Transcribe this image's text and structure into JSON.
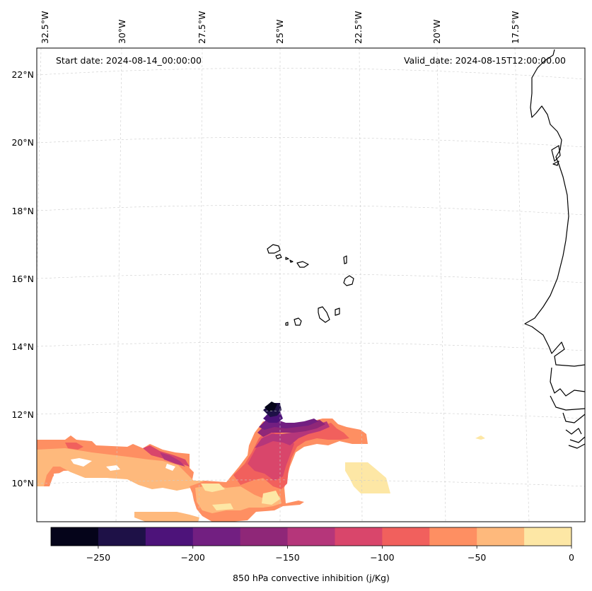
{
  "map": {
    "start_label": "Start date: 2024-08-14_00:00:00",
    "valid_label": "Valid_date: 2024-08-15T12:00:00.00",
    "lon_labels": [
      "32.5°W",
      "30°W",
      "27.5°W",
      "25°W",
      "22.5°W",
      "20°W",
      "17.5°W"
    ],
    "lat_labels": [
      "22°N",
      "20°N",
      "18°N",
      "16°N",
      "14°N",
      "12°N",
      "10°N"
    ]
  },
  "colorbar": {
    "label": "850 hPa convective inhibition (j/Kg)",
    "ticks": [
      "−250",
      "−200",
      "−150",
      "−100",
      "−50",
      "0"
    ],
    "levels": [
      -275,
      -250,
      -225,
      -200,
      -175,
      -150,
      -125,
      -100,
      -75,
      -50,
      -25,
      0
    ],
    "colors": [
      "#05041a",
      "#1e1147",
      "#4d137a",
      "#721f81",
      "#8f2778",
      "#b5367a",
      "#d9466b",
      "#f1605d",
      "#fe8f62",
      "#feb97c",
      "#fde7a5"
    ]
  },
  "colors": {
    "coastline": "#000000",
    "gridline": "#cccccc"
  }
}
